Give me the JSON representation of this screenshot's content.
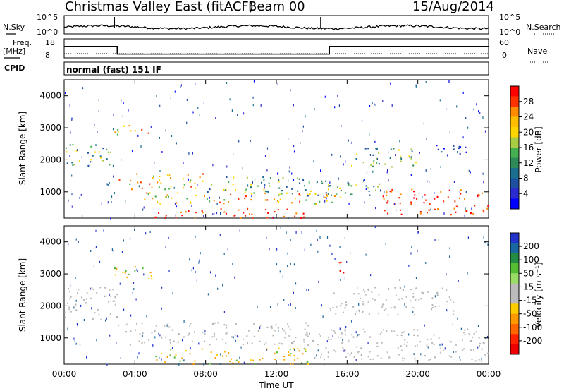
{
  "header": {
    "title": "Christmas Valley East (fitACF)",
    "beam": "Beam 00",
    "date": "15/Aug/2014"
  },
  "summary": {
    "nsky_label": "N.Sky",
    "nsky_ticks": [
      "10^5",
      "10^0"
    ],
    "nsearch_label": "N.Search",
    "freq_label": "Freq.",
    "freq_unit": "[MHz]",
    "freq_ticks": [
      "18",
      "8"
    ],
    "nave_label": "Nave",
    "nave_ticks": [
      "60",
      "0"
    ],
    "cpid_label": "CPID",
    "cpid_value": "normal (fast) 151 IF"
  },
  "power_scale": {
    "label": "Power [dB]",
    "ticks": [
      "28",
      "24",
      "20",
      "16",
      "12",
      "8",
      "4"
    ],
    "colors": [
      "#ff0000",
      "#ff3300",
      "#ff8c00",
      "#ffbf00",
      "#ffd700",
      "#aacc44",
      "#44b050",
      "#2e8b57",
      "#1a6e8e",
      "#1f4fa0",
      "#2b2bcf",
      "#0000ff"
    ]
  },
  "velocity_scale": {
    "label": "Velocity [m s⁻¹]",
    "ticks": [
      "200",
      "100",
      "50",
      "15",
      "-15",
      "-50",
      "-100",
      "-200"
    ],
    "colors": [
      "#2233cc",
      "#1a66a0",
      "#228b44",
      "#55bb33",
      "#99dd66",
      "#bbbbbb",
      "#bbbbbb",
      "#ffcc00",
      "#ff9900",
      "#ff6600",
      "#ff2200",
      "#ee0000"
    ]
  },
  "chart_data": {
    "type": "heatmap",
    "x": {
      "label": "Time UT",
      "ticks": [
        "00:00",
        "04:00",
        "08:00",
        "12:00",
        "16:00",
        "20:00",
        "00:00"
      ],
      "range_hours": [
        0,
        24
      ]
    },
    "y": {
      "label": "Slant Range [km]",
      "ticks": [
        "4000",
        "3000",
        "2000",
        "1000"
      ],
      "range_km": [
        180,
        4500
      ]
    },
    "frequency_step": {
      "low_mhz": 10,
      "high_mhz": 14,
      "high_from_h": 0,
      "low_from_h": 3,
      "high_again_from_h": 15
    },
    "power_echo_regions": [
      {
        "t": [
          0.0,
          3.0
        ],
        "r": [
          1800,
          2500
        ],
        "level": "mid"
      },
      {
        "t": [
          2.8,
          5.2
        ],
        "r": [
          2800,
          3100
        ],
        "level": "high"
      },
      {
        "t": [
          3.0,
          8.0
        ],
        "r": [
          1100,
          1600
        ],
        "level": "high"
      },
      {
        "t": [
          4.5,
          16.0
        ],
        "r": [
          600,
          1000
        ],
        "level": "high"
      },
      {
        "t": [
          5.0,
          14.5
        ],
        "r": [
          200,
          500
        ],
        "level": "very-high"
      },
      {
        "t": [
          8.0,
          13.5
        ],
        "r": [
          1000,
          1500
        ],
        "level": "mid"
      },
      {
        "t": [
          12.5,
          18.0
        ],
        "r": [
          900,
          1400
        ],
        "level": "mid"
      },
      {
        "t": [
          16.0,
          20.0
        ],
        "r": [
          1800,
          2400
        ],
        "level": "mid"
      },
      {
        "t": [
          18.0,
          24.0
        ],
        "r": [
          300,
          1100
        ],
        "level": "very-high"
      },
      {
        "t": [
          20.0,
          23.0
        ],
        "r": [
          2200,
          2500
        ],
        "level": "low"
      }
    ],
    "velocity_echo_regions": [
      {
        "t": [
          0.0,
          3.0
        ],
        "r": [
          1600,
          2600
        ],
        "class": "ground-scatter"
      },
      {
        "t": [
          2.8,
          5.0
        ],
        "r": [
          2800,
          3300
        ],
        "class": "negative"
      },
      {
        "t": [
          3.0,
          14.0
        ],
        "r": [
          800,
          1500
        ],
        "class": "ground-scatter"
      },
      {
        "t": [
          5.0,
          14.0
        ],
        "r": [
          200,
          700
        ],
        "class": "negative"
      },
      {
        "t": [
          14.0,
          24.0
        ],
        "r": [
          300,
          1300
        ],
        "class": "ground-scatter"
      },
      {
        "t": [
          15.5,
          16.2
        ],
        "r": [
          3000,
          3400
        ],
        "class": "strong-negative"
      },
      {
        "t": [
          15.0,
          22.0
        ],
        "r": [
          1700,
          2600
        ],
        "class": "ground-scatter"
      }
    ]
  }
}
